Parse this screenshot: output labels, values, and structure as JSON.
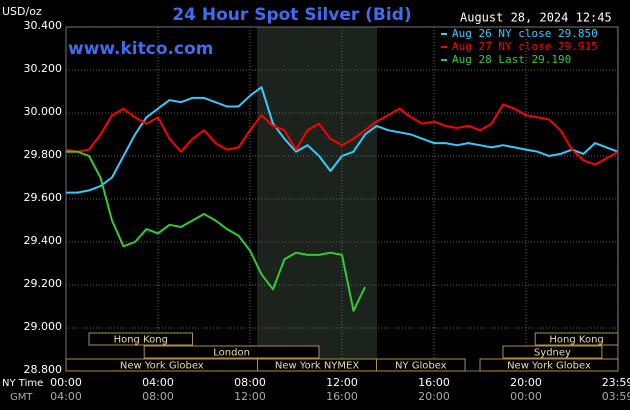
{
  "chart_data": {
    "type": "line",
    "title": "24 Hour Spot Silver (Bid)",
    "unit": "USD/oz",
    "date": "August 28, 2024 12:45",
    "site": "www.kitco.com",
    "x_row_label": "NY Time",
    "x2_row_label": "GMT",
    "x": [
      0,
      0.5,
      1,
      1.5,
      2,
      2.5,
      3,
      3.5,
      4,
      4.5,
      5,
      5.5,
      6,
      6.5,
      7,
      7.5,
      8,
      8.5,
      9,
      9.5,
      10,
      10.5,
      11,
      11.5,
      12,
      12.5,
      13,
      13.5,
      14,
      14.5,
      15,
      15.5,
      16,
      16.5,
      17,
      17.5,
      18,
      18.5,
      19,
      19.5,
      20,
      20.5,
      21,
      21.5,
      22,
      22.5,
      23,
      23.5,
      24
    ],
    "xlim": [
      0,
      24
    ],
    "xticks": [
      {
        "value": 0,
        "label": "00:00"
      },
      {
        "value": 4,
        "label": "04:00"
      },
      {
        "value": 8,
        "label": "08:00"
      },
      {
        "value": 12,
        "label": "12:00"
      },
      {
        "value": 16,
        "label": "16:00"
      },
      {
        "value": 20,
        "label": "20:00"
      },
      {
        "value": 23.98,
        "label": "23:59"
      }
    ],
    "x2tick_labels": [
      "04:00",
      "08:00",
      "12:00",
      "16:00",
      "20:00",
      "00:00",
      "03:59"
    ],
    "ylim": [
      28.8,
      30.4
    ],
    "yticks": [
      {
        "value": 28.8,
        "label": "28.800"
      },
      {
        "value": 29,
        "label": "29.000"
      },
      {
        "value": 29.2,
        "label": "29.200"
      },
      {
        "value": 29.4,
        "label": "29.400"
      },
      {
        "value": 29.6,
        "label": "29.600"
      },
      {
        "value": 29.8,
        "label": "29.800"
      },
      {
        "value": 30,
        "label": "30.000"
      },
      {
        "value": 30.2,
        "label": "30.200"
      },
      {
        "value": 30.4,
        "label": "30.400"
      }
    ],
    "grid": true,
    "legend": "top-right",
    "series": [
      {
        "name": "Aug 26 NY close 29.850",
        "color": "#33ccff",
        "values": [
          29.63,
          29.63,
          29.64,
          29.66,
          29.7,
          29.8,
          29.9,
          29.98,
          30.02,
          30.06,
          30.05,
          30.07,
          30.07,
          30.05,
          30.03,
          30.03,
          30.08,
          30.12,
          29.95,
          29.88,
          29.82,
          29.85,
          29.8,
          29.73,
          29.8,
          29.82,
          29.9,
          29.94,
          29.92,
          29.91,
          29.9,
          29.88,
          29.86,
          29.86,
          29.85,
          29.86,
          29.85,
          29.84,
          29.85,
          29.84,
          29.83,
          29.82,
          29.8,
          29.81,
          29.83,
          29.81,
          29.86,
          29.84,
          29.82
        ]
      },
      {
        "name": "Aug 27 NY close 29.915",
        "color": "#ff0000",
        "values": [
          29.83,
          29.82,
          29.83,
          29.9,
          29.99,
          30.02,
          29.98,
          29.95,
          29.98,
          29.88,
          29.82,
          29.88,
          29.92,
          29.86,
          29.83,
          29.84,
          29.92,
          29.99,
          29.94,
          29.92,
          29.83,
          29.92,
          29.95,
          29.88,
          29.85,
          29.88,
          29.92,
          29.96,
          29.99,
          30.02,
          29.98,
          29.95,
          29.96,
          29.94,
          29.93,
          29.94,
          29.92,
          29.95,
          30.04,
          30.02,
          29.99,
          29.98,
          29.97,
          29.92,
          29.83,
          29.78,
          29.76,
          29.79,
          29.82
        ]
      },
      {
        "name": "Aug 28 Last 29.190",
        "color": "#33cc33",
        "values": [
          29.82,
          29.82,
          29.8,
          29.7,
          29.5,
          29.38,
          29.4,
          29.46,
          29.44,
          29.48,
          29.47,
          29.5,
          29.53,
          29.5,
          29.46,
          29.43,
          29.36,
          29.25,
          29.18,
          29.32,
          29.35,
          29.34,
          29.34,
          29.35,
          29.34,
          29.08,
          29.19,
          null,
          null,
          null,
          null,
          null,
          null,
          null,
          null,
          null,
          null,
          null,
          null,
          null,
          null,
          null,
          null,
          null,
          null,
          null,
          null,
          null,
          null
        ]
      }
    ],
    "session_rows": [
      [
        {
          "label": "Hong Kong",
          "start": 1,
          "end": 5.5
        },
        {
          "label": "Hong Kong",
          "start": 20.4,
          "end": 24
        }
      ],
      [
        {
          "label": "London",
          "start": 3.4,
          "end": 11
        },
        {
          "label": "Sydney",
          "start": 19,
          "end": 23.3
        }
      ],
      [
        {
          "label": "New York Globex",
          "start": 0,
          "end": 8.33
        },
        {
          "label": "New York NYMEX",
          "start": 8.33,
          "end": 13.5
        },
        {
          "label": "NY Globex",
          "start": 13.5,
          "end": 17.35
        },
        {
          "label": "New York Globex",
          "start": 18,
          "end": 24
        }
      ]
    ]
  }
}
